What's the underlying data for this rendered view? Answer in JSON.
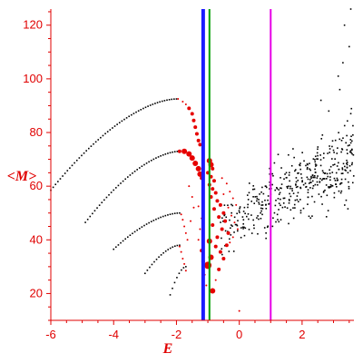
{
  "chart_data": {
    "type": "scatter",
    "xlabel": "E",
    "ylabel": "<M>",
    "xlim": [
      -6,
      3.65
    ],
    "ylim": [
      10,
      126
    ],
    "x_ticks": [
      -6,
      -4,
      -2,
      0,
      2
    ],
    "y_ticks": [
      20,
      40,
      60,
      80,
      100,
      120
    ],
    "x_tick_labels": [
      "-6",
      "-4",
      "-2",
      "0",
      "2"
    ],
    "y_tick_labels": [
      "20",
      "40",
      "60",
      "80",
      "100",
      "120"
    ],
    "grid": false,
    "colors": {
      "axes": "#e00000",
      "black_points": "#000000",
      "red_points": "#e60000",
      "blue_line": "#1a1aff",
      "green_line": "#00a000",
      "magenta_line": "#e600e6"
    },
    "vertical_lines": [
      {
        "x": -1.15,
        "color": "#1a1aff"
      },
      {
        "x": -0.95,
        "color": "#00a000"
      },
      {
        "x": 1.0,
        "color": "#e600e6"
      }
    ],
    "curves": [
      {
        "x_start": -6.0,
        "y_start": 58.5,
        "x_end": -2.0,
        "y_end": 92.5,
        "y_peak": 92.5
      },
      {
        "x_start": -4.9,
        "y_start": 46.5,
        "x_end": -1.9,
        "y_end": 73.0,
        "y_peak": 73.0
      },
      {
        "x_start": -4.0,
        "y_start": 36.5,
        "x_end": -1.9,
        "y_end": 50.0,
        "y_peak": 50.0
      },
      {
        "x_start": -3.0,
        "y_start": 27.5,
        "x_end": -1.9,
        "y_end": 38.0,
        "y_peak": 38.0
      },
      {
        "x_start": -2.2,
        "y_start": 19.5,
        "x_end": -1.7,
        "y_end": 30.0,
        "y_peak": 30.0
      }
    ],
    "red_points": [
      [
        -1.95,
        92.5,
        1
      ],
      [
        -1.8,
        91.5,
        1
      ],
      [
        -1.7,
        90.5,
        1
      ],
      [
        -1.6,
        89,
        2
      ],
      [
        -1.5,
        87,
        2
      ],
      [
        -1.45,
        84.5,
        2
      ],
      [
        -1.4,
        82,
        2
      ],
      [
        -1.35,
        79.5,
        2
      ],
      [
        -1.3,
        77,
        2
      ],
      [
        -1.25,
        75.5,
        2
      ],
      [
        -1.9,
        73,
        2
      ],
      [
        -1.75,
        73,
        3
      ],
      [
        -1.6,
        72,
        3
      ],
      [
        -1.5,
        70.5,
        3
      ],
      [
        -1.4,
        68.5,
        3
      ],
      [
        -1.3,
        66.5,
        3
      ],
      [
        -1.25,
        64.5,
        3
      ],
      [
        -1.2,
        63,
        2
      ],
      [
        -1.85,
        49.5,
        1
      ],
      [
        -1.8,
        47.5,
        1
      ],
      [
        -1.75,
        45,
        1
      ],
      [
        -1.7,
        42.5,
        1
      ],
      [
        -1.65,
        40,
        1
      ],
      [
        -1.9,
        37.5,
        1
      ],
      [
        -1.85,
        35.5,
        1
      ],
      [
        -1.8,
        33,
        1
      ],
      [
        -1.75,
        31,
        1
      ],
      [
        -1.7,
        28.5,
        1
      ],
      [
        -1.3,
        52.5,
        1
      ],
      [
        -1.2,
        48,
        1
      ],
      [
        -1.25,
        44,
        1
      ],
      [
        -1.3,
        40,
        1
      ],
      [
        -1.2,
        36,
        2
      ],
      [
        -1.15,
        32,
        2
      ],
      [
        -1.1,
        27,
        1
      ],
      [
        -1.05,
        23,
        1
      ],
      [
        -0.95,
        69.5,
        3
      ],
      [
        -0.9,
        68,
        3
      ],
      [
        -0.85,
        66.5,
        2
      ],
      [
        -1.0,
        65,
        2
      ],
      [
        -0.9,
        63.5,
        2
      ],
      [
        -0.8,
        62,
        2
      ],
      [
        -0.95,
        60.5,
        2
      ],
      [
        -0.85,
        59,
        2
      ],
      [
        -0.75,
        57.5,
        2
      ],
      [
        -0.9,
        56,
        2
      ],
      [
        -0.7,
        54.5,
        2
      ],
      [
        -0.6,
        53,
        2
      ],
      [
        -0.8,
        51.5,
        2
      ],
      [
        -0.5,
        50,
        2
      ],
      [
        -0.65,
        48.5,
        2
      ],
      [
        -0.45,
        47,
        2
      ],
      [
        -0.85,
        45.5,
        2
      ],
      [
        -0.55,
        44,
        2
      ],
      [
        -0.35,
        42.5,
        2
      ],
      [
        -0.7,
        41,
        2
      ],
      [
        -0.95,
        39.5,
        3
      ],
      [
        -0.75,
        37.5,
        2
      ],
      [
        -0.6,
        35.5,
        2
      ],
      [
        -0.9,
        33.5,
        3
      ],
      [
        -1.0,
        30.5,
        4
      ],
      [
        -0.85,
        21,
        3
      ],
      [
        -0.65,
        29,
        2
      ],
      [
        -0.5,
        33,
        2
      ],
      [
        -0.4,
        38,
        2
      ],
      [
        -0.55,
        63,
        1
      ],
      [
        -0.4,
        61,
        1
      ],
      [
        -0.3,
        58,
        1
      ],
      [
        -0.2,
        55.5,
        1
      ],
      [
        -0.1,
        53,
        1
      ],
      [
        -0.5,
        57,
        1
      ],
      [
        -0.35,
        52,
        1
      ],
      [
        -0.25,
        49,
        1
      ],
      [
        -0.15,
        46.5,
        1
      ],
      [
        -0.05,
        44,
        1
      ],
      [
        -0.2,
        41,
        1
      ],
      [
        -0.3,
        39,
        1
      ],
      [
        0.0,
        13.5,
        1
      ],
      [
        -0.75,
        25,
        1
      ],
      [
        -1.6,
        60,
        1
      ],
      [
        -1.5,
        56,
        1
      ],
      [
        -1.45,
        52,
        1
      ],
      [
        -1.55,
        47,
        1
      ]
    ],
    "black_scatter": {
      "n_points": 420,
      "x_range": [
        -0.6,
        3.65
      ],
      "trend": [
        [
          -0.6,
          44
        ],
        [
          3.65,
          72
        ]
      ],
      "spread": 11,
      "upper_tail_points": [
        [
          3.15,
          101
        ],
        [
          3.3,
          106
        ],
        [
          3.5,
          112
        ],
        [
          3.35,
          120
        ],
        [
          3.55,
          126
        ],
        [
          3.2,
          96
        ],
        [
          2.6,
          92
        ],
        [
          2.85,
          88
        ]
      ]
    }
  }
}
